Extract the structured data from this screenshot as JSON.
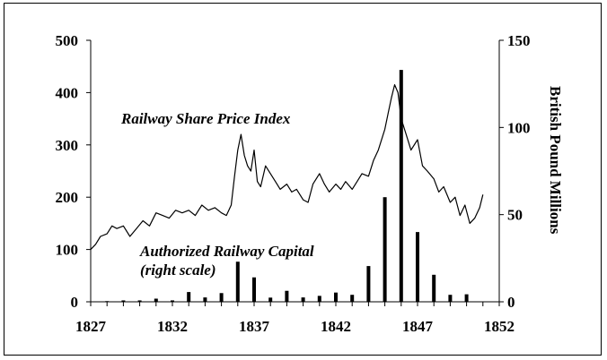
{
  "chart_data": {
    "type": "bar+line",
    "x_axis": {
      "ticks": [
        "1827",
        "1832",
        "1837",
        "1842",
        "1847",
        "1852"
      ],
      "range": [
        1827,
        1852
      ]
    },
    "y_left": {
      "ticks": [
        "0",
        "100",
        "200",
        "300",
        "400",
        "500"
      ],
      "range": [
        0,
        500
      ]
    },
    "y_right": {
      "ticks": [
        "0",
        "50",
        "100",
        "150"
      ],
      "range": [
        0,
        150
      ],
      "label": "British Pound Millions"
    },
    "annotations": {
      "line_label": "Railway Share Price Index",
      "bar_label_line1": "Authorized Railway Capital",
      "bar_label_line2": "(right scale)"
    },
    "series": [
      {
        "name": "Authorized Railway Capital",
        "type": "bar",
        "axis": "right",
        "x": [
          1828,
          1829,
          1830,
          1831,
          1832,
          1833,
          1834,
          1835,
          1836,
          1837,
          1838,
          1839,
          1840,
          1841,
          1842,
          1843,
          1844,
          1845,
          1846,
          1847,
          1848,
          1849,
          1850
        ],
        "values": [
          0.4,
          0.8,
          0.8,
          1.8,
          0.8,
          5.6,
          2.5,
          5.0,
          23,
          14,
          2.4,
          6.3,
          2.5,
          3.4,
          5.3,
          4.0,
          20.5,
          60,
          133,
          40,
          15.5,
          4.0,
          4.3
        ]
      },
      {
        "name": "Railway Share Price Index",
        "type": "line",
        "axis": "left",
        "x": [
          1827.0,
          1827.3,
          1827.6,
          1828.0,
          1828.3,
          1828.6,
          1829.0,
          1829.4,
          1829.8,
          1830.2,
          1830.6,
          1831.0,
          1831.4,
          1831.8,
          1832.2,
          1832.6,
          1833.0,
          1833.4,
          1833.8,
          1834.2,
          1834.6,
          1835.0,
          1835.3,
          1835.6,
          1835.8,
          1836.0,
          1836.2,
          1836.4,
          1836.6,
          1836.8,
          1837.0,
          1837.2,
          1837.4,
          1837.7,
          1838.0,
          1838.3,
          1838.6,
          1839.0,
          1839.3,
          1839.6,
          1840.0,
          1840.3,
          1840.6,
          1841.0,
          1841.3,
          1841.6,
          1842.0,
          1842.3,
          1842.6,
          1843.0,
          1843.3,
          1843.6,
          1844.0,
          1844.3,
          1844.6,
          1845.0,
          1845.2,
          1845.4,
          1845.6,
          1845.8,
          1846.0,
          1846.3,
          1846.6,
          1847.0,
          1847.3,
          1847.6,
          1848.0,
          1848.3,
          1848.6,
          1849.0,
          1849.3,
          1849.6,
          1849.9,
          1850.2,
          1850.5,
          1850.8,
          1851.0
        ],
        "values": [
          100,
          110,
          125,
          130,
          145,
          140,
          145,
          125,
          140,
          155,
          145,
          170,
          165,
          160,
          175,
          170,
          175,
          165,
          185,
          175,
          180,
          170,
          165,
          185,
          240,
          290,
          320,
          280,
          260,
          250,
          290,
          230,
          220,
          260,
          245,
          230,
          215,
          225,
          210,
          215,
          195,
          190,
          225,
          245,
          225,
          210,
          225,
          215,
          230,
          215,
          230,
          245,
          240,
          270,
          290,
          330,
          360,
          390,
          415,
          400,
          350,
          320,
          290,
          310,
          260,
          250,
          235,
          210,
          220,
          190,
          200,
          165,
          185,
          150,
          160,
          180,
          205
        ]
      }
    ]
  }
}
